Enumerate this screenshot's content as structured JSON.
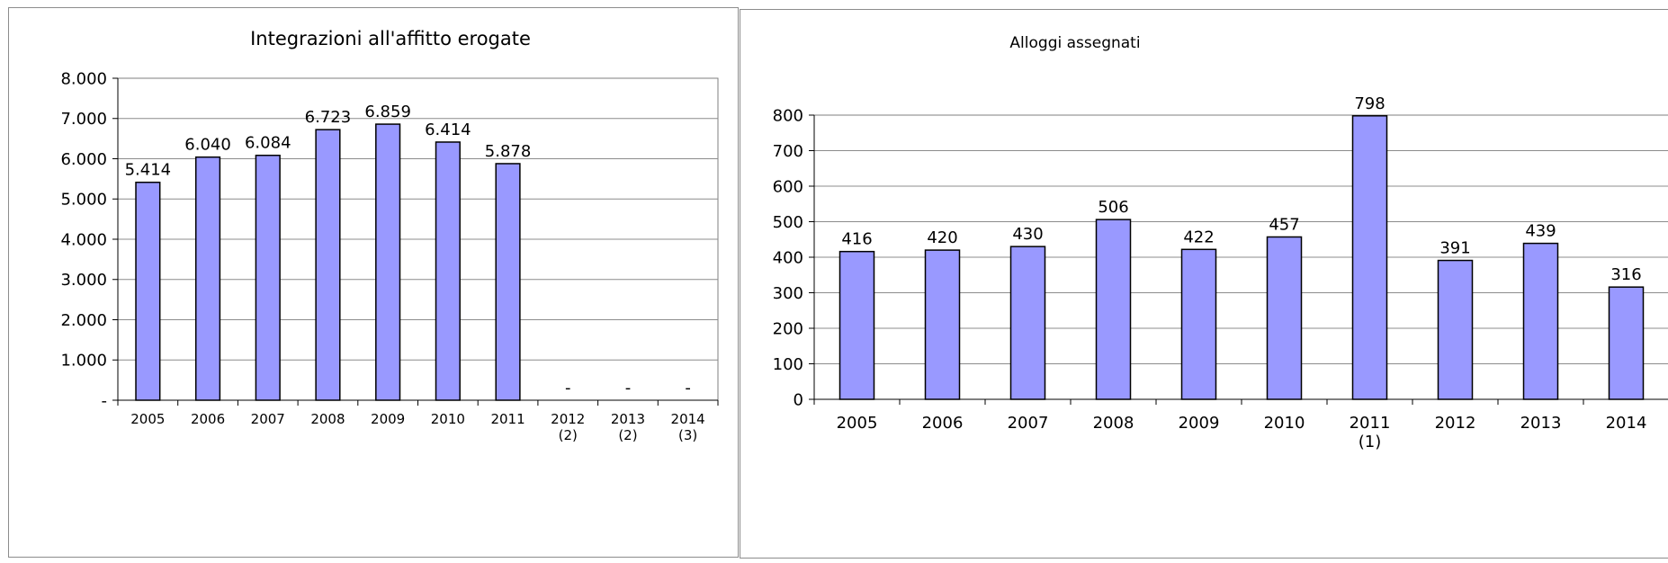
{
  "chart_data": [
    {
      "type": "bar",
      "title": "Integrazioni all'affitto erogate",
      "xlabel": "",
      "ylabel": "",
      "categories": [
        [
          "2005"
        ],
        [
          "2006"
        ],
        [
          "2007"
        ],
        [
          "2008"
        ],
        [
          "2009"
        ],
        [
          "2010"
        ],
        [
          "2011"
        ],
        [
          "2012",
          "(2)"
        ],
        [
          "2013",
          "(2)"
        ],
        [
          "2014",
          "(3)"
        ]
      ],
      "values": [
        5414,
        6040,
        6084,
        6723,
        6859,
        6414,
        5878,
        null,
        null,
        null
      ],
      "data_labels": [
        "5.414",
        "6.040",
        "6.084",
        "6.723",
        "6.859",
        "6.414",
        "5.878",
        "-",
        "-",
        "-"
      ],
      "ylim": [
        0,
        8000
      ],
      "yticks": [
        0,
        1000,
        2000,
        3000,
        4000,
        5000,
        6000,
        7000,
        8000
      ],
      "ytick_labels": [
        "-",
        "1.000",
        "2.000",
        "3.000",
        "4.000",
        "5.000",
        "6.000",
        "7.000",
        "8.000"
      ],
      "grid": true,
      "legend": "none",
      "bar_color": "#9999ff",
      "bar_edge_color": "#000000"
    },
    {
      "type": "bar",
      "title": "Alloggi assegnati",
      "xlabel": "",
      "ylabel": "",
      "categories": [
        [
          "2005"
        ],
        [
          "2006"
        ],
        [
          "2007"
        ],
        [
          "2008"
        ],
        [
          "2009"
        ],
        [
          "2010"
        ],
        [
          "2011",
          "(1)"
        ],
        [
          "2012"
        ],
        [
          "2013"
        ],
        [
          "2014"
        ]
      ],
      "values": [
        416,
        420,
        430,
        506,
        422,
        457,
        798,
        391,
        439,
        316
      ],
      "data_labels": [
        "416",
        "420",
        "430",
        "506",
        "422",
        "457",
        "798",
        "391",
        "439",
        "316"
      ],
      "ylim": [
        0,
        800
      ],
      "yticks": [
        0,
        100,
        200,
        300,
        400,
        500,
        600,
        700,
        800
      ],
      "ytick_labels": [
        "0",
        "100",
        "200",
        "300",
        "400",
        "500",
        "600",
        "700",
        "800"
      ],
      "grid": true,
      "legend": "none",
      "bar_color": "#9999ff",
      "bar_edge_color": "#000000"
    }
  ]
}
